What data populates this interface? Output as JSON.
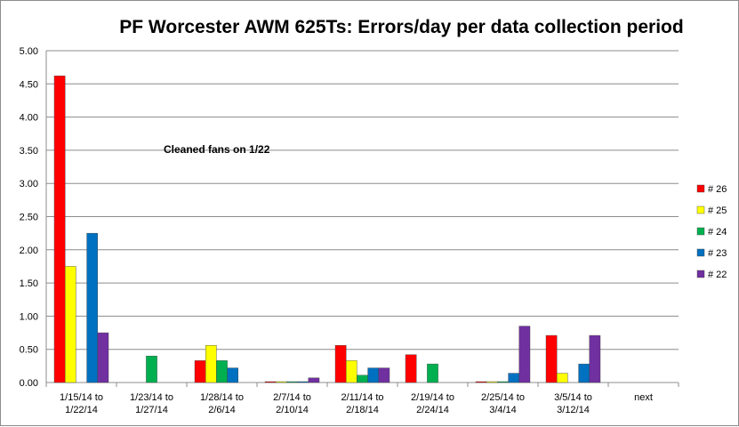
{
  "chart_data": {
    "type": "bar",
    "title": "PF Worcester AWM 625Ts: Errors/day per data collection period",
    "xlabel": "",
    "ylabel": "",
    "ylim": [
      0,
      5
    ],
    "yticks": [
      "0.00",
      "0.50",
      "1.00",
      "1.50",
      "2.00",
      "2.50",
      "3.00",
      "3.50",
      "4.00",
      "4.50",
      "5.00"
    ],
    "grid": true,
    "legend_position": "right",
    "categories": [
      [
        "1/15/14 to",
        "1/22/14"
      ],
      [
        "1/23/14 to",
        "1/27/14"
      ],
      [
        "1/28/14 to",
        "2/6/14"
      ],
      [
        "2/7/14 to",
        "2/10/14"
      ],
      [
        "2/11/14 to",
        "2/18/14"
      ],
      [
        "2/19/14 to",
        "2/24/14"
      ],
      [
        "2/25/14 to",
        "3/4/14"
      ],
      [
        "3/5/14 to",
        "3/12/14"
      ],
      [
        "next"
      ]
    ],
    "series": [
      {
        "name": "# 26",
        "color": "#ff0000",
        "values": [
          4.62,
          0,
          0.33,
          0,
          0.56,
          0.42,
          0,
          0.71,
          0
        ]
      },
      {
        "name": "# 25",
        "color": "#ffff00",
        "values": [
          1.75,
          0,
          0.56,
          0,
          0.33,
          0,
          0,
          0.14,
          0
        ]
      },
      {
        "name": "# 24",
        "color": "#00b050",
        "values": [
          0,
          0.4,
          0.33,
          0,
          0.11,
          0.28,
          0,
          0,
          0
        ]
      },
      {
        "name": "# 23",
        "color": "#0070c0",
        "values": [
          2.25,
          0,
          0.22,
          0,
          0.22,
          0,
          0.14,
          0.28,
          0
        ]
      },
      {
        "name": "# 22",
        "color": "#7030a0",
        "values": [
          0.75,
          0,
          0,
          0.07,
          0.22,
          0,
          0.85,
          0.71,
          0
        ]
      }
    ],
    "annotations": [
      {
        "text": "Cleaned fans on 1/22"
      }
    ]
  }
}
